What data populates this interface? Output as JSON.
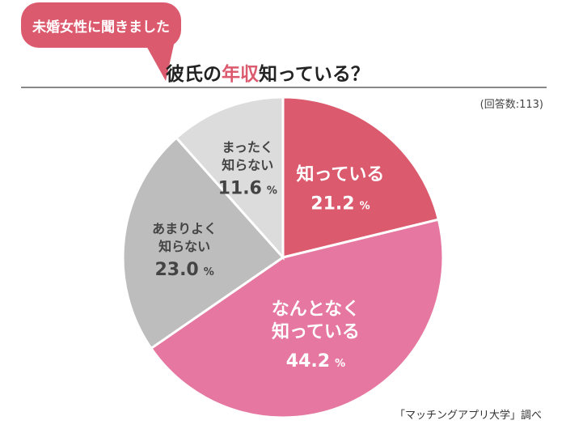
{
  "header": {
    "bubble_text": "未婚女性に聞きました",
    "title_pre": "彼氏の",
    "title_highlight": "年収",
    "title_post": "知っている？",
    "respondents": "(回答数:113)"
  },
  "footer": {
    "source": "「マッチングアプリ大学」調べ"
  },
  "colors": {
    "accent": "#dc5a6e"
  },
  "chart_data": {
    "type": "pie",
    "start": "12 o'clock, clockwise",
    "slices": [
      {
        "label": [
          "知っている"
        ],
        "value": 21.2,
        "display": "21.2",
        "color": "#dc5a6e",
        "text_color": "#ffffff"
      },
      {
        "label": [
          "なんとなく",
          "知っている"
        ],
        "value": 44.2,
        "display": "44.2",
        "color": "#e577a0",
        "text_color": "#ffffff"
      },
      {
        "label": [
          "あまりよく",
          "知らない"
        ],
        "value": 23.0,
        "display": "23.0",
        "color": "#bdbdbd",
        "text_color": "#444444"
      },
      {
        "label": [
          "まったく",
          "知らない"
        ],
        "value": 11.6,
        "display": "11.6",
        "color": "#dcdcdc",
        "text_color": "#444444"
      }
    ],
    "unit": "%"
  }
}
